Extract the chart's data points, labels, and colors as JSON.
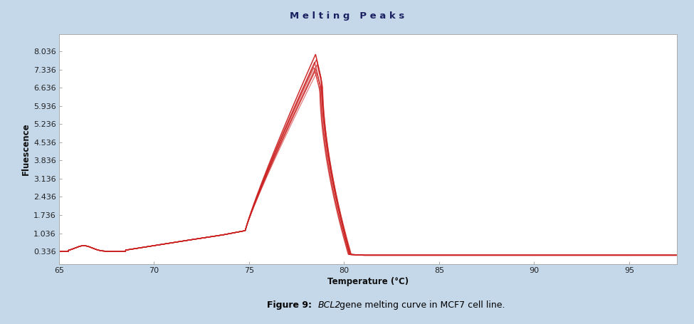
{
  "title": "M e l t i n g   P e a k s",
  "xlabel": "Temperature (°C)",
  "ylabel": "Fluescence",
  "xlim": [
    65,
    97.5
  ],
  "ylim": [
    -0.15,
    8.7
  ],
  "yticks": [
    0.336,
    1.036,
    1.736,
    2.436,
    3.136,
    3.836,
    4.536,
    5.236,
    5.936,
    6.636,
    7.336,
    8.036
  ],
  "xticks": [
    65,
    70,
    75,
    80,
    85,
    90,
    95
  ],
  "background_color": "#c5d8ea",
  "plot_bg_color": "#ffffff",
  "line_color": "#cc2222",
  "title_fontsize": 9.5,
  "axis_label_fontsize": 8.5,
  "tick_fontsize": 8,
  "n_curves": 8,
  "peak_x": 78.5,
  "peak_heights": [
    7.92,
    7.72,
    7.62,
    7.52,
    7.42,
    7.35,
    7.28,
    7.22
  ],
  "baseline": 0.336,
  "post_baseline": 0.22
}
